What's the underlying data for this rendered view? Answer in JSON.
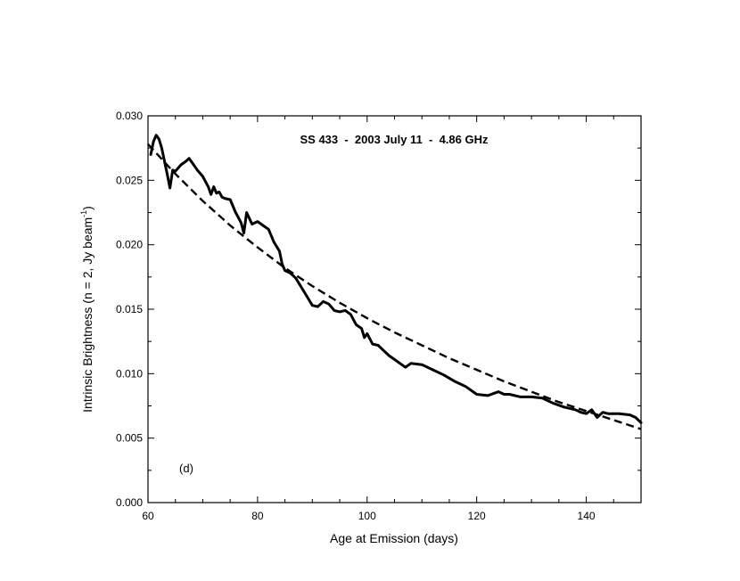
{
  "chart_data": {
    "type": "line",
    "title": "SS 433  -  2003 July 11  -  4.86 GHz",
    "xlabel": "Age at Emission (days)",
    "ylabel_main": "Intrinsic Brightness (n = 2, Jy beam",
    "ylabel_sup": "-1",
    "ylabel_close": ")",
    "annotation": "(d)",
    "xlim": [
      60,
      150
    ],
    "ylim": [
      0.0,
      0.03
    ],
    "xticks": [
      60,
      80,
      100,
      120,
      140
    ],
    "xtick_labels": [
      "60",
      "80",
      "100",
      "120",
      "140"
    ],
    "yticks": [
      0.0,
      0.005,
      0.01,
      0.015,
      0.02,
      0.025,
      0.03
    ],
    "ytick_labels": [
      "0.000",
      "0.005",
      "0.010",
      "0.015",
      "0.020",
      "0.025",
      "0.030"
    ],
    "grid": false,
    "series": [
      {
        "style": "solid",
        "x": [
          60.5,
          61,
          61.5,
          62,
          62.5,
          63,
          63.5,
          64,
          64.5,
          65,
          66,
          67,
          67.5,
          68,
          69,
          70,
          71,
          71.5,
          72,
          72.5,
          73,
          73.5,
          74,
          75,
          76,
          77,
          77.5,
          78,
          79,
          80,
          81,
          82,
          83,
          84,
          84.5,
          85,
          86,
          87,
          88,
          89,
          90,
          91,
          92,
          93,
          94,
          95,
          96,
          97,
          98,
          99,
          99.5,
          100,
          101,
          102,
          103,
          104,
          105,
          106,
          107,
          108,
          110,
          112,
          114,
          116,
          118,
          120,
          122,
          124,
          125,
          126,
          128,
          130,
          132,
          134,
          136,
          138,
          139,
          140,
          141,
          142,
          143,
          144,
          146,
          148,
          149,
          150
        ],
        "y": [
          0.027,
          0.028,
          0.0285,
          0.0282,
          0.0275,
          0.0265,
          0.0255,
          0.0244,
          0.0258,
          0.0257,
          0.0262,
          0.0265,
          0.0267,
          0.0264,
          0.0258,
          0.0253,
          0.0245,
          0.0239,
          0.0245,
          0.024,
          0.0241,
          0.0237,
          0.0236,
          0.0235,
          0.0225,
          0.0217,
          0.0209,
          0.0225,
          0.0216,
          0.0218,
          0.0215,
          0.0212,
          0.0202,
          0.0195,
          0.0185,
          0.018,
          0.0178,
          0.0174,
          0.0167,
          0.016,
          0.0153,
          0.0152,
          0.0156,
          0.0154,
          0.0149,
          0.0148,
          0.0149,
          0.0146,
          0.0138,
          0.0135,
          0.0128,
          0.0131,
          0.0123,
          0.0122,
          0.0118,
          0.0114,
          0.0111,
          0.0108,
          0.0105,
          0.0108,
          0.0107,
          0.0103,
          0.0099,
          0.0094,
          0.009,
          0.0084,
          0.0083,
          0.0086,
          0.0084,
          0.0084,
          0.0082,
          0.0082,
          0.0081,
          0.0077,
          0.0074,
          0.0072,
          0.007,
          0.0069,
          0.0072,
          0.0066,
          0.007,
          0.0069,
          0.0069,
          0.0068,
          0.0066,
          0.0062
        ]
      },
      {
        "style": "dashed",
        "x": [
          60,
          65,
          70,
          75,
          80,
          85,
          90,
          95,
          100,
          105,
          110,
          115,
          120,
          125,
          130,
          135,
          140,
          145,
          150
        ],
        "y": [
          0.0278,
          0.0255,
          0.0234,
          0.0215,
          0.0198,
          0.0182,
          0.0168,
          0.0155,
          0.0143,
          0.0132,
          0.0122,
          0.0112,
          0.0103,
          0.0094,
          0.0086,
          0.0078,
          0.0071,
          0.0064,
          0.0057
        ]
      }
    ]
  }
}
